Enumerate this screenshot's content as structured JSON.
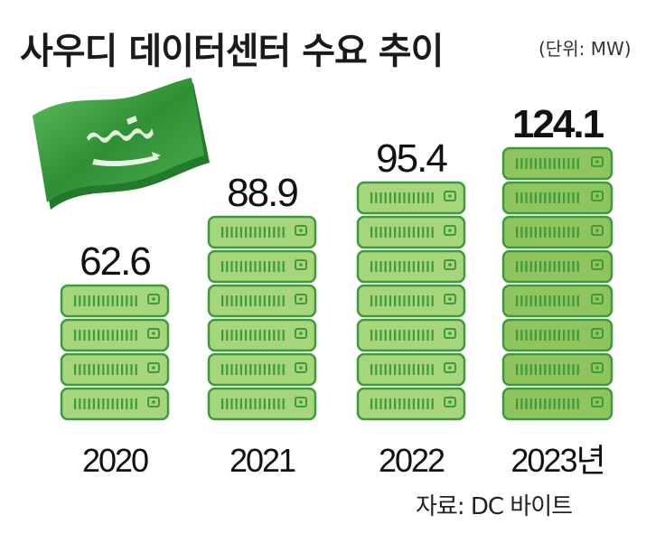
{
  "header": {
    "title": "사우디 데이터센터 수요 추이",
    "unit": "(단위: MW)"
  },
  "source": "자료: DC 바이트",
  "flag": {
    "name": "saudi-flag-icon",
    "color": "#3a9e3a"
  },
  "colors": {
    "server_fill": "#a6d57b",
    "server_fill_dark": "#8fc45e",
    "server_stroke": "#3d9a3d",
    "vent": "#3d9a3d"
  },
  "chart_data": {
    "type": "bar",
    "categories": [
      "2020",
      "2021",
      "2022",
      "2023년"
    ],
    "values": [
      62.6,
      88.9,
      95.4,
      124.1
    ],
    "value_labels": [
      "62.6",
      "88.9",
      "95.4",
      "124.1"
    ],
    "title": "사우디 데이터센터 수요 추이",
    "xlabel": "",
    "ylabel": "",
    "unit": "MW",
    "server_units": [
      4,
      6,
      7,
      8
    ],
    "highlight_index": 3
  }
}
